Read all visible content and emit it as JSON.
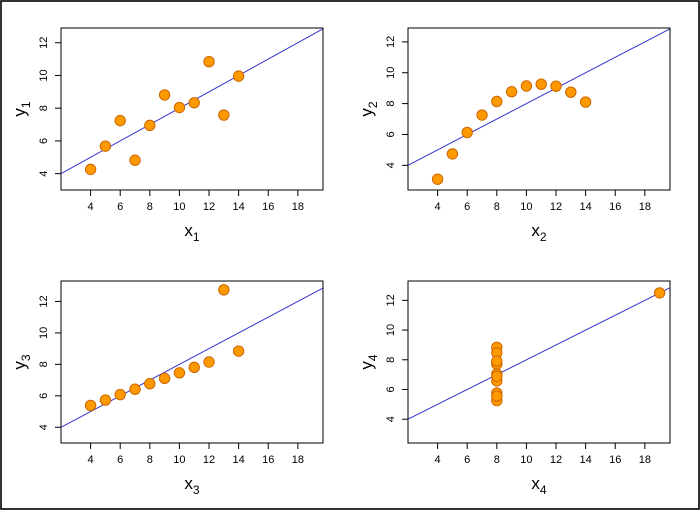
{
  "chart_data": [
    {
      "type": "scatter",
      "xlabel": "x",
      "xlabel_sub": "1",
      "ylabel": "y",
      "ylabel_sub": "1",
      "xlim": [
        2,
        19.7
      ],
      "ylim": [
        3,
        12.9
      ],
      "xticks": [
        4,
        6,
        8,
        10,
        12,
        14,
        16,
        18
      ],
      "yticks": [
        4,
        6,
        8,
        10,
        12
      ],
      "points": [
        [
          10,
          8.04
        ],
        [
          8,
          6.95
        ],
        [
          13,
          7.58
        ],
        [
          9,
          8.81
        ],
        [
          11,
          8.33
        ],
        [
          14,
          9.96
        ],
        [
          6,
          7.24
        ],
        [
          4,
          4.26
        ],
        [
          12,
          10.84
        ],
        [
          7,
          4.82
        ],
        [
          5,
          5.68
        ]
      ],
      "fit": {
        "intercept": 3.0,
        "slope": 0.5
      },
      "point_color": "#ff9900",
      "line_color": "#3333cc"
    },
    {
      "type": "scatter",
      "xlabel": "x",
      "xlabel_sub": "2",
      "ylabel": "y",
      "ylabel_sub": "2",
      "xlim": [
        2,
        19.7
      ],
      "ylim": [
        2.4,
        12.9
      ],
      "xticks": [
        4,
        6,
        8,
        10,
        12,
        14,
        16,
        18
      ],
      "yticks": [
        4,
        6,
        8,
        10,
        12
      ],
      "points": [
        [
          10,
          9.14
        ],
        [
          8,
          8.14
        ],
        [
          13,
          8.74
        ],
        [
          9,
          8.77
        ],
        [
          11,
          9.26
        ],
        [
          14,
          8.1
        ],
        [
          6,
          6.13
        ],
        [
          4,
          3.1
        ],
        [
          12,
          9.13
        ],
        [
          7,
          7.26
        ],
        [
          5,
          4.74
        ]
      ],
      "fit": {
        "intercept": 3.0,
        "slope": 0.5
      },
      "point_color": "#ff9900",
      "line_color": "#3333cc"
    },
    {
      "type": "scatter",
      "xlabel": "x",
      "xlabel_sub": "3",
      "ylabel": "y",
      "ylabel_sub": "3",
      "xlim": [
        2,
        19.7
      ],
      "ylim": [
        3,
        13.3
      ],
      "xticks": [
        4,
        6,
        8,
        10,
        12,
        14,
        16,
        18
      ],
      "yticks": [
        4,
        6,
        8,
        10,
        12
      ],
      "points": [
        [
          10,
          7.46
        ],
        [
          8,
          6.77
        ],
        [
          13,
          12.74
        ],
        [
          9,
          7.11
        ],
        [
          11,
          7.81
        ],
        [
          14,
          8.84
        ],
        [
          6,
          6.08
        ],
        [
          4,
          5.39
        ],
        [
          12,
          8.15
        ],
        [
          7,
          6.42
        ],
        [
          5,
          5.73
        ]
      ],
      "fit": {
        "intercept": 3.0,
        "slope": 0.5
      },
      "point_color": "#ff9900",
      "line_color": "#3333cc"
    },
    {
      "type": "scatter",
      "xlabel": "x",
      "xlabel_sub": "4",
      "ylabel": "y",
      "ylabel_sub": "4",
      "xlim": [
        2,
        19.7
      ],
      "ylim": [
        2.4,
        13.3
      ],
      "xticks": [
        4,
        6,
        8,
        10,
        12,
        14,
        16,
        18
      ],
      "yticks": [
        4,
        6,
        8,
        10,
        12
      ],
      "points": [
        [
          8,
          6.58
        ],
        [
          8,
          5.76
        ],
        [
          8,
          7.71
        ],
        [
          8,
          8.84
        ],
        [
          8,
          8.47
        ],
        [
          8,
          7.04
        ],
        [
          8,
          5.25
        ],
        [
          19,
          12.5
        ],
        [
          8,
          5.56
        ],
        [
          8,
          7.91
        ],
        [
          8,
          6.89
        ]
      ],
      "fit": {
        "intercept": 3.0,
        "slope": 0.5
      },
      "point_color": "#ff9900",
      "line_color": "#3333cc"
    }
  ]
}
